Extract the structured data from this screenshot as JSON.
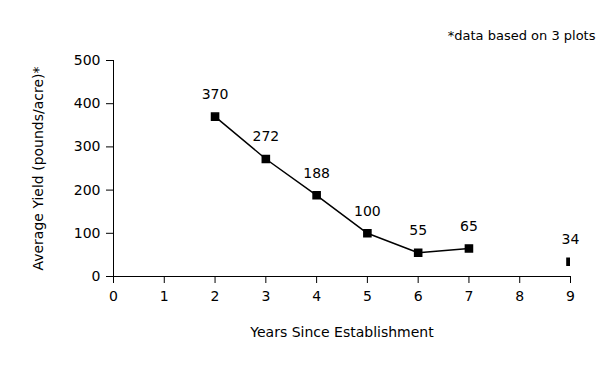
{
  "chart_data": {
    "type": "line",
    "x_label": "Years Since Establishment",
    "y_label": "Average Yield (pounds/acre)*",
    "annotation": "*data based on 3 plots",
    "x": [
      2,
      3,
      4,
      5,
      6,
      7,
      8,
      9
    ],
    "values": [
      370,
      272,
      188,
      100,
      55,
      65,
      null,
      34
    ],
    "color": "#000000",
    "marker": "square",
    "data_labels": true,
    "xlim": [
      0,
      9
    ],
    "xticks": [
      0,
      1,
      2,
      3,
      4,
      5,
      6,
      7,
      8,
      9
    ],
    "ylim": [
      0,
      500
    ],
    "yticks": [
      0,
      100,
      200,
      300,
      400,
      500
    ],
    "grid": false
  }
}
